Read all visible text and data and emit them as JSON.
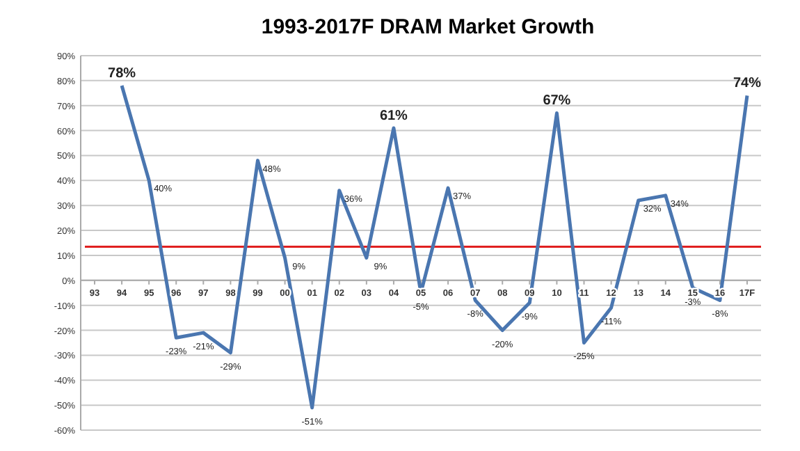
{
  "chart_data": {
    "type": "line",
    "title": "1993-2017F DRAM Market Growth",
    "categories": [
      "93",
      "94",
      "95",
      "96",
      "97",
      "98",
      "99",
      "00",
      "01",
      "02",
      "03",
      "04",
      "05",
      "06",
      "07",
      "08",
      "09",
      "10",
      "11",
      "12",
      "13",
      "14",
      "15",
      "16",
      "17F"
    ],
    "series": [
      {
        "color": "#4a76b0",
        "values": [
          null,
          78,
          40,
          -23,
          -21,
          -29,
          48,
          9,
          -51,
          36,
          9,
          61,
          -5,
          37,
          -8,
          -20,
          -9,
          67,
          -25,
          -11,
          32,
          34,
          -3,
          -8,
          74
        ],
        "value_labels": [
          null,
          "78%",
          "40%",
          "-23%",
          "-21%",
          "-29%",
          "48%",
          "9%",
          "-51%",
          "36%",
          "9%",
          "61%",
          "-5%",
          "37%",
          "-8%",
          "-20%",
          "-9%",
          "67%",
          "-25%",
          "-11%",
          "32%",
          "34%",
          "-3%",
          "-8%",
          "74%"
        ]
      }
    ],
    "ylim": [
      -60,
      90
    ],
    "yticks": [
      {
        "value": -60,
        "label": "-60%"
      },
      {
        "value": -50,
        "label": "-50%"
      },
      {
        "value": -40,
        "label": "-40%"
      },
      {
        "value": -30,
        "label": "-30%"
      },
      {
        "value": -20,
        "label": "-20%"
      },
      {
        "value": -10,
        "label": "-10%"
      },
      {
        "value": 0,
        "label": "0%"
      },
      {
        "value": 10,
        "label": "10%"
      },
      {
        "value": 20,
        "label": "20%"
      },
      {
        "value": 30,
        "label": "30%"
      },
      {
        "value": 40,
        "label": "40%"
      },
      {
        "value": 50,
        "label": "50%"
      },
      {
        "value": 60,
        "label": "60%"
      },
      {
        "value": 70,
        "label": "70%"
      },
      {
        "value": 80,
        "label": "80%"
      },
      {
        "value": 90,
        "label": "90%"
      }
    ],
    "grid": "y",
    "marker": "none",
    "line_style": "solid",
    "ref_lines": [
      {
        "axis": "y",
        "value": 13.5,
        "color": "#e02020"
      }
    ]
  }
}
